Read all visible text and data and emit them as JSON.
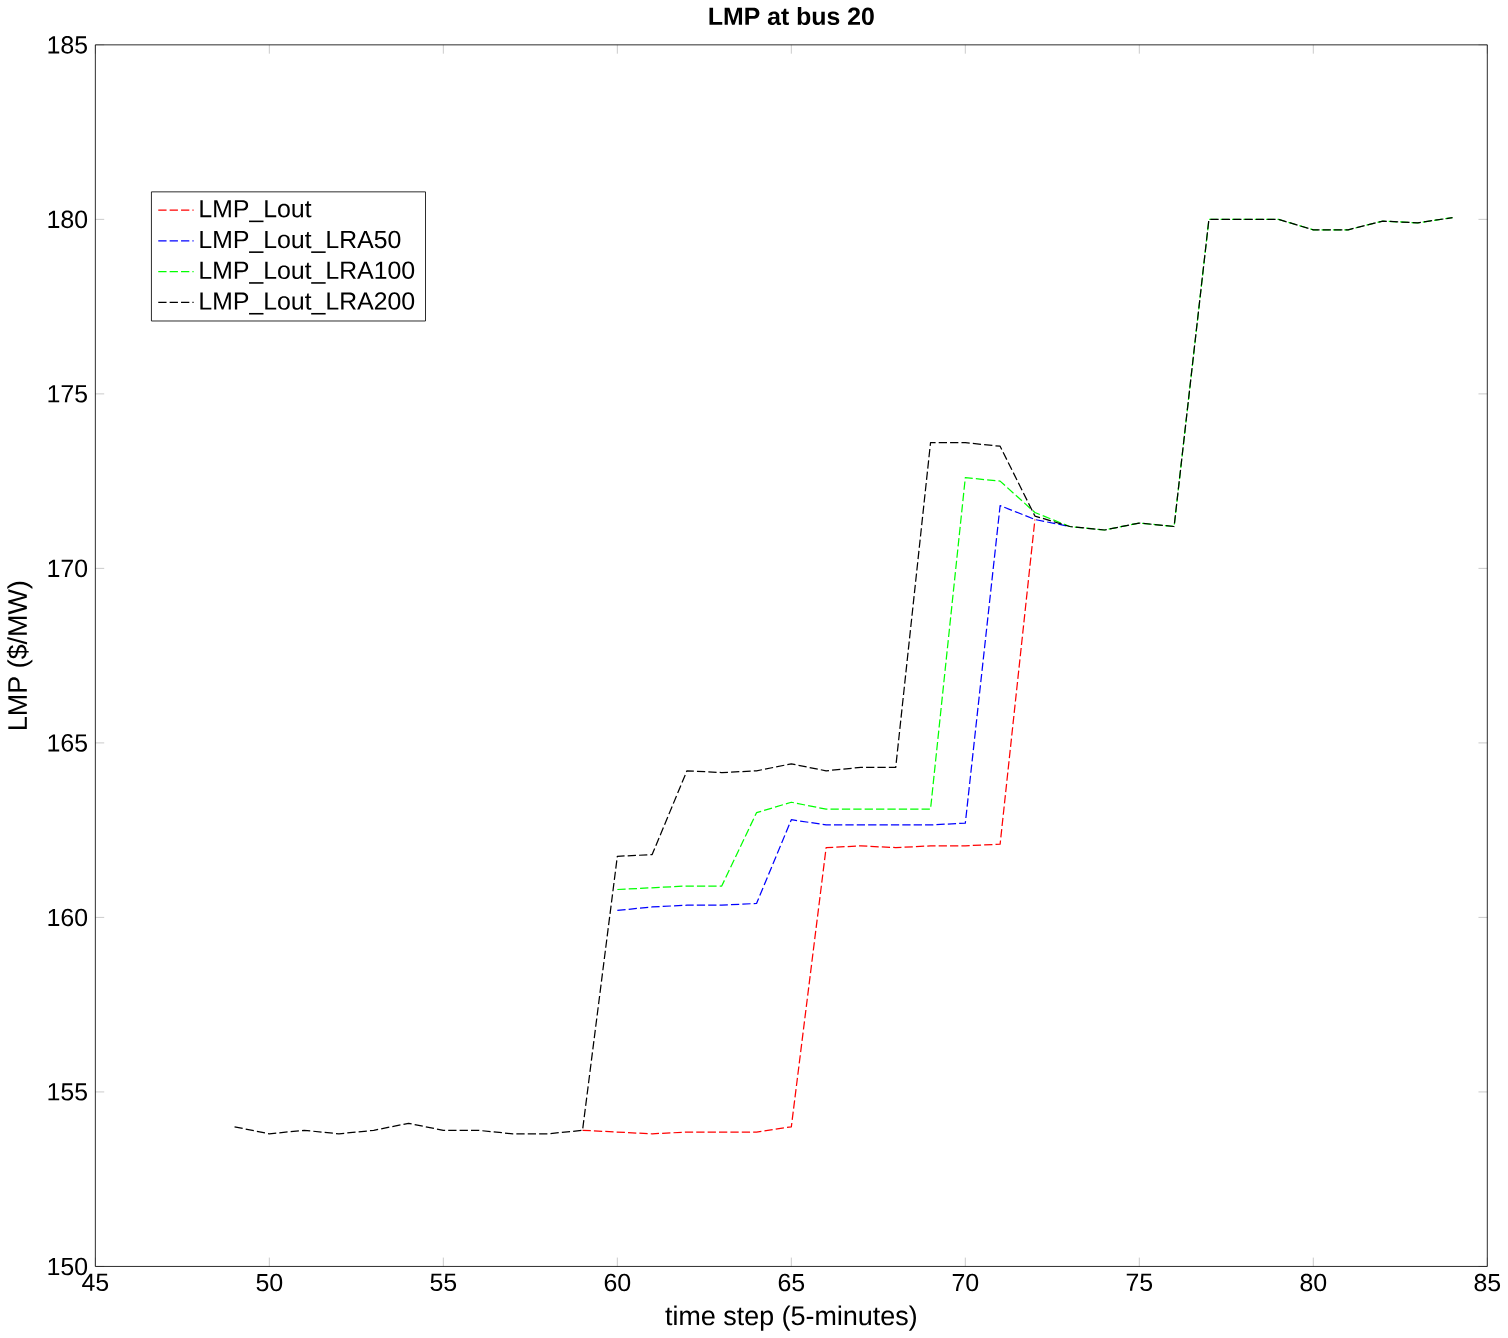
{
  "chart_data": {
    "type": "line",
    "title": "LMP at bus 20",
    "xlabel": "time step (5-minutes)",
    "ylabel": "LMP ($/MW)",
    "x": [
      49,
      50,
      51,
      52,
      53,
      54,
      55,
      56,
      57,
      58,
      59,
      60,
      61,
      62,
      63,
      64,
      65,
      66,
      67,
      68,
      69,
      70,
      71,
      72,
      73,
      74,
      75,
      76,
      77,
      78,
      79,
      80,
      81,
      82,
      83,
      84
    ],
    "series": [
      {
        "name": "LMP_Lout",
        "color": "#ff0000",
        "values": [
          null,
          null,
          null,
          null,
          null,
          null,
          null,
          null,
          null,
          null,
          153.9,
          153.85,
          153.8,
          153.85,
          153.85,
          153.85,
          154.0,
          162.0,
          162.05,
          162.0,
          162.05,
          162.05,
          162.1,
          171.4,
          null,
          null,
          null,
          null,
          null,
          null,
          null,
          null,
          null,
          null,
          null,
          null
        ]
      },
      {
        "name": "LMP_Lout_LRA50",
        "color": "#0000ff",
        "values": [
          null,
          null,
          null,
          null,
          null,
          null,
          null,
          null,
          null,
          null,
          null,
          160.2,
          160.3,
          160.35,
          160.35,
          160.4,
          162.8,
          162.65,
          162.65,
          162.65,
          162.65,
          162.7,
          171.8,
          171.4,
          171.2,
          null,
          null,
          null,
          null,
          null,
          null,
          null,
          null,
          null,
          null,
          null
        ]
      },
      {
        "name": "LMP_Lout_LRA100",
        "color": "#00ff00",
        "values": [
          null,
          null,
          null,
          null,
          null,
          null,
          null,
          null,
          null,
          null,
          null,
          160.8,
          160.85,
          160.9,
          160.9,
          163.0,
          163.3,
          163.1,
          163.1,
          163.1,
          163.1,
          172.6,
          172.5,
          171.6,
          171.2,
          171.1,
          171.3,
          171.2,
          180.0,
          180.0,
          180.0,
          179.7,
          179.7,
          179.95,
          179.9,
          180.05
        ]
      },
      {
        "name": "LMP_Lout_LRA200",
        "color": "#000000",
        "values": [
          154.0,
          153.8,
          153.9,
          153.8,
          153.9,
          154.1,
          153.9,
          153.9,
          153.8,
          153.8,
          153.9,
          161.75,
          161.8,
          164.2,
          164.15,
          164.2,
          164.4,
          164.2,
          164.3,
          164.3,
          173.6,
          173.6,
          173.5,
          171.5,
          171.2,
          171.1,
          171.3,
          171.2,
          180.0,
          180.0,
          180.0,
          179.7,
          179.7,
          179.95,
          179.9,
          180.05
        ]
      }
    ],
    "xlim": [
      45,
      85
    ],
    "ylim": [
      150,
      185
    ],
    "xticks": [
      45,
      50,
      55,
      60,
      65,
      70,
      75,
      80,
      85
    ],
    "yticks": [
      150,
      155,
      160,
      165,
      170,
      175,
      180,
      185
    ],
    "legend": "top left",
    "line_style": "dashed",
    "grid": false
  }
}
